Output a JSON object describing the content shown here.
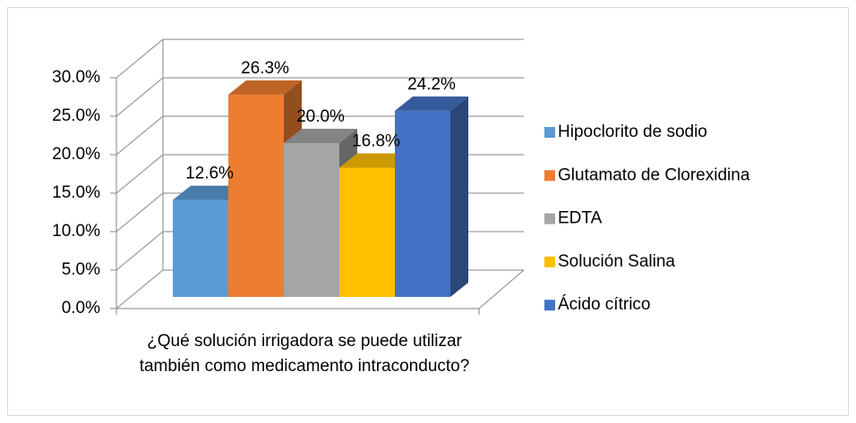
{
  "chart_data": {
    "type": "bar3d",
    "categories": [
      "¿Qué solución irrigadora se puede utilizar también como medicamento intraconducto?"
    ],
    "series": [
      {
        "name": "Hipoclorito de sodio",
        "color": "#5b9bd5",
        "values": [
          12.6
        ],
        "value_labels": [
          "12.6%"
        ]
      },
      {
        "name": "Glutamato de Clorexidina",
        "color": "#ed7d31",
        "values": [
          26.3
        ],
        "value_labels": [
          "26.3%"
        ]
      },
      {
        "name": "EDTA",
        "color": "#a5a5a5",
        "values": [
          20.0
        ],
        "value_labels": [
          "20.0%"
        ]
      },
      {
        "name": "Solución Salina",
        "color": "#ffc000",
        "values": [
          16.8
        ],
        "value_labels": [
          "16.8%"
        ]
      },
      {
        "name": "Ácido cítrico",
        "color": "#4472c4",
        "values": [
          24.2
        ],
        "value_labels": [
          "24.2%"
        ]
      }
    ],
    "ylim": [
      0,
      30
    ],
    "yticks": [
      {
        "value": 0,
        "label": "0.0%"
      },
      {
        "value": 5,
        "label": "5.0%"
      },
      {
        "value": 10,
        "label": "10.0%"
      },
      {
        "value": 15,
        "label": "15.0%"
      },
      {
        "value": 20,
        "label": "20.0%"
      },
      {
        "value": 25,
        "label": "25.0%"
      },
      {
        "value": 30,
        "label": "30.0%"
      }
    ],
    "grid": true,
    "legend": "right"
  }
}
